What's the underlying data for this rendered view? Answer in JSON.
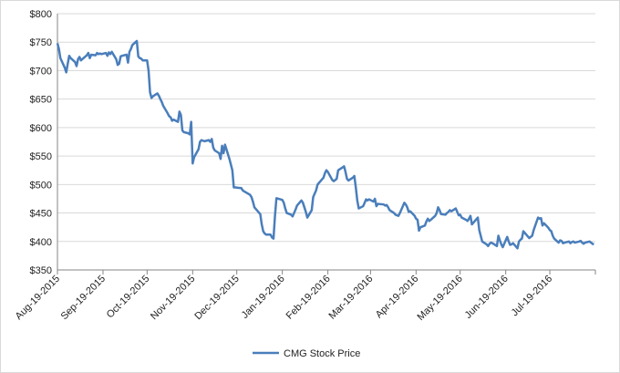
{
  "chart_data": {
    "type": "line",
    "x": [
      "2015-08-19",
      "2015-08-20",
      "2015-08-21",
      "2015-08-24",
      "2015-08-25",
      "2015-08-26",
      "2015-08-27",
      "2015-08-28",
      "2015-08-31",
      "2015-09-01",
      "2015-09-02",
      "2015-09-03",
      "2015-09-04",
      "2015-09-08",
      "2015-09-09",
      "2015-09-10",
      "2015-09-11",
      "2015-09-14",
      "2015-09-15",
      "2015-09-16",
      "2015-09-17",
      "2015-09-18",
      "2015-09-21",
      "2015-09-22",
      "2015-09-23",
      "2015-09-24",
      "2015-09-25",
      "2015-09-28",
      "2015-09-29",
      "2015-09-30",
      "2015-10-01",
      "2015-10-02",
      "2015-10-05",
      "2015-10-06",
      "2015-10-07",
      "2015-10-08",
      "2015-10-09",
      "2015-10-12",
      "2015-10-13",
      "2015-10-14",
      "2015-10-15",
      "2015-10-16",
      "2015-10-19",
      "2015-10-20",
      "2015-10-21",
      "2015-10-22",
      "2015-10-23",
      "2015-10-26",
      "2015-10-27",
      "2015-10-28",
      "2015-10-29",
      "2015-10-30",
      "2015-11-02",
      "2015-11-03",
      "2015-11-04",
      "2015-11-05",
      "2015-11-06",
      "2015-11-09",
      "2015-11-10",
      "2015-11-11",
      "2015-11-12",
      "2015-11-13",
      "2015-11-16",
      "2015-11-17",
      "2015-11-18",
      "2015-11-19",
      "2015-11-20",
      "2015-11-23",
      "2015-11-24",
      "2015-11-25",
      "2015-11-27",
      "2015-11-30",
      "2015-12-01",
      "2015-12-02",
      "2015-12-03",
      "2015-12-04",
      "2015-12-07",
      "2015-12-08",
      "2015-12-09",
      "2015-12-10",
      "2015-12-11",
      "2015-12-14",
      "2015-12-15",
      "2015-12-16",
      "2015-12-17",
      "2015-12-18",
      "2015-12-21",
      "2015-12-22",
      "2015-12-23",
      "2015-12-24",
      "2015-12-28",
      "2015-12-29",
      "2015-12-30",
      "2015-12-31",
      "2016-01-04",
      "2016-01-05",
      "2016-01-06",
      "2016-01-07",
      "2016-01-08",
      "2016-01-11",
      "2016-01-12",
      "2016-01-13",
      "2016-01-14",
      "2016-01-15",
      "2016-01-19",
      "2016-01-20",
      "2016-01-21",
      "2016-01-22",
      "2016-01-25",
      "2016-01-26",
      "2016-01-27",
      "2016-01-28",
      "2016-01-29",
      "2016-02-01",
      "2016-02-02",
      "2016-02-03",
      "2016-02-04",
      "2016-02-05",
      "2016-02-08",
      "2016-02-09",
      "2016-02-10",
      "2016-02-11",
      "2016-02-12",
      "2016-02-16",
      "2016-02-17",
      "2016-02-18",
      "2016-02-19",
      "2016-02-22",
      "2016-02-23",
      "2016-02-24",
      "2016-02-25",
      "2016-02-26",
      "2016-02-29",
      "2016-03-01",
      "2016-03-02",
      "2016-03-03",
      "2016-03-04",
      "2016-03-07",
      "2016-03-08",
      "2016-03-09",
      "2016-03-10",
      "2016-03-11",
      "2016-03-14",
      "2016-03-15",
      "2016-03-16",
      "2016-03-17",
      "2016-03-18",
      "2016-03-21",
      "2016-03-22",
      "2016-03-23",
      "2016-03-24",
      "2016-03-28",
      "2016-03-29",
      "2016-03-30",
      "2016-03-31",
      "2016-04-01",
      "2016-04-04",
      "2016-04-05",
      "2016-04-06",
      "2016-04-07",
      "2016-04-08",
      "2016-04-11",
      "2016-04-12",
      "2016-04-13",
      "2016-04-14",
      "2016-04-15",
      "2016-04-18",
      "2016-04-19",
      "2016-04-20",
      "2016-04-21",
      "2016-04-22",
      "2016-04-25",
      "2016-04-26",
      "2016-04-27",
      "2016-04-28",
      "2016-04-29",
      "2016-05-02",
      "2016-05-03",
      "2016-05-04",
      "2016-05-05",
      "2016-05-06",
      "2016-05-09",
      "2016-05-10",
      "2016-05-11",
      "2016-05-12",
      "2016-05-13",
      "2016-05-16",
      "2016-05-17",
      "2016-05-18",
      "2016-05-19",
      "2016-05-20",
      "2016-05-23",
      "2016-05-24",
      "2016-05-25",
      "2016-05-26",
      "2016-05-27",
      "2016-05-31",
      "2016-06-01",
      "2016-06-02",
      "2016-06-03",
      "2016-06-06",
      "2016-06-07",
      "2016-06-08",
      "2016-06-09",
      "2016-06-10",
      "2016-06-13",
      "2016-06-14",
      "2016-06-15",
      "2016-06-16",
      "2016-06-17",
      "2016-06-20",
      "2016-06-21",
      "2016-06-22",
      "2016-06-23",
      "2016-06-24",
      "2016-06-27",
      "2016-06-28",
      "2016-06-29",
      "2016-06-30",
      "2016-07-01",
      "2016-07-05",
      "2016-07-06",
      "2016-07-07",
      "2016-07-08",
      "2016-07-11",
      "2016-07-12",
      "2016-07-13",
      "2016-07-14",
      "2016-07-15",
      "2016-07-18",
      "2016-07-19",
      "2016-07-20",
      "2016-07-21",
      "2016-07-22",
      "2016-07-25",
      "2016-07-26",
      "2016-07-27",
      "2016-07-28",
      "2016-07-29",
      "2016-08-01",
      "2016-08-02",
      "2016-08-03",
      "2016-08-04",
      "2016-08-05",
      "2016-08-08",
      "2016-08-09",
      "2016-08-10",
      "2016-08-11",
      "2016-08-12",
      "2016-08-15",
      "2016-08-16",
      "2016-08-17",
      "2016-08-18"
    ],
    "series": [
      {
        "name": "CMG Stock Price",
        "color": "#4a7ebb",
        "values": [
          748,
          738,
          722,
          705,
          697,
          712,
          726,
          722,
          715,
          708,
          720,
          724,
          718,
          727,
          731,
          722,
          728,
          727,
          731,
          729,
          730,
          729,
          731,
          726,
          732,
          729,
          733,
          720,
          710,
          712,
          725,
          726,
          728,
          714,
          733,
          738,
          745,
          752,
          725,
          722,
          721,
          718,
          718,
          700,
          662,
          652,
          655,
          660,
          656,
          650,
          645,
          638,
          625,
          620,
          618,
          612,
          614,
          610,
          628,
          622,
          595,
          592,
          590,
          588,
          610,
          537,
          548,
          562,
          575,
          578,
          576,
          578,
          575,
          580,
          565,
          560,
          555,
          545,
          568,
          555,
          570,
          545,
          535,
          525,
          495,
          495,
          494,
          494,
          490,
          488,
          482,
          478,
          470,
          460,
          448,
          430,
          418,
          414,
          412,
          412,
          407,
          405,
          445,
          476,
          473,
          468,
          458,
          450,
          447,
          444,
          450,
          456,
          463,
          472,
          468,
          460,
          452,
          442,
          455,
          478,
          484,
          490,
          500,
          512,
          520,
          525,
          522,
          508,
          506,
          508,
          510,
          525,
          530,
          532,
          522,
          510,
          507,
          512,
          515,
          495,
          472,
          458,
          462,
          468,
          474,
          472,
          474,
          470,
          475,
          462,
          466,
          465,
          463,
          464,
          460,
          455,
          450,
          447,
          446,
          445,
          450,
          468,
          465,
          460,
          452,
          453,
          445,
          440,
          438,
          419,
          425,
          428,
          435,
          440,
          436,
          438,
          445,
          450,
          460,
          455,
          448,
          447,
          450,
          452,
          455,
          453,
          458,
          452,
          446,
          447,
          442,
          438,
          436,
          440,
          445,
          430,
          442,
          420,
          410,
          400,
          395,
          392,
          396,
          398,
          397,
          392,
          410,
          402,
          395,
          390,
          408,
          400,
          394,
          395,
          397,
          388,
          400,
          403,
          405,
          418,
          406,
          408,
          410,
          420,
          442,
          440,
          441,
          428,
          432,
          424,
          420,
          418,
          410,
          405,
          398,
          402,
          401,
          397,
          398,
          400,
          397,
          399,
          400,
          398,
          400,
          401,
          398,
          396,
          398,
          400,
          398,
          396,
          395
        ]
      }
    ],
    "xlim": [
      "2015-08-19",
      "2016-08-19"
    ],
    "xticks": [
      {
        "value": "2015-08-19",
        "label": "Aug-19-2015"
      },
      {
        "value": "2015-09-19",
        "label": "Sep-19-2015"
      },
      {
        "value": "2015-10-19",
        "label": "Oct-19-2015"
      },
      {
        "value": "2015-11-19",
        "label": "Nov-19-2015"
      },
      {
        "value": "2015-12-19",
        "label": "Dec-19-2015"
      },
      {
        "value": "2016-01-19",
        "label": "Jan-19-2016"
      },
      {
        "value": "2016-02-19",
        "label": "Feb-19-2016"
      },
      {
        "value": "2016-03-19",
        "label": "Mar-19-2016"
      },
      {
        "value": "2016-04-19",
        "label": "Apr-19-2016"
      },
      {
        "value": "2016-05-19",
        "label": "May-19-2016"
      },
      {
        "value": "2016-06-19",
        "label": "Jun-19-2016"
      },
      {
        "value": "2016-07-19",
        "label": "Jul-19-2016"
      }
    ],
    "ylim": [
      350,
      800
    ],
    "yticks": [
      {
        "value": 350,
        "label": "$350"
      },
      {
        "value": 400,
        "label": "$400"
      },
      {
        "value": 450,
        "label": "$450"
      },
      {
        "value": 500,
        "label": "$500"
      },
      {
        "value": 550,
        "label": "$550"
      },
      {
        "value": 600,
        "label": "$600"
      },
      {
        "value": 650,
        "label": "$650"
      },
      {
        "value": 700,
        "label": "$700"
      },
      {
        "value": 750,
        "label": "$750"
      },
      {
        "value": 800,
        "label": "$800"
      }
    ],
    "grid": true,
    "legend": "bottom"
  }
}
